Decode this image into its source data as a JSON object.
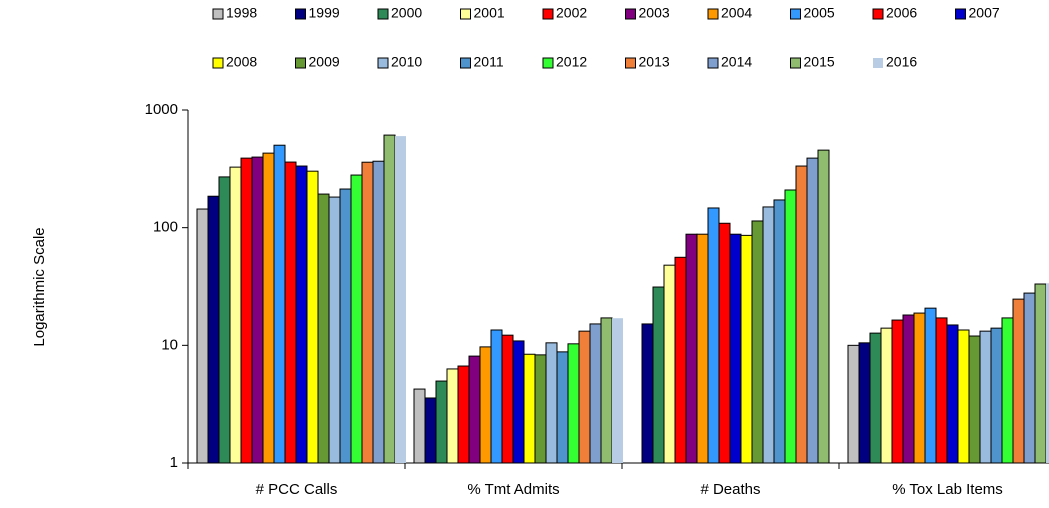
{
  "chart_data": {
    "type": "bar",
    "log_scale": true,
    "y_label": "Logarithmic Scale",
    "categories": [
      "# PCC Calls",
      "% Tmt Admits",
      "# Deaths",
      "% Tox Lab Items"
    ],
    "ylim": [
      1,
      1000
    ],
    "yticks": [
      1,
      10,
      100,
      1000
    ],
    "series": [
      {
        "name": "1998",
        "color": "#c0c0c0",
        "values": [
          144,
          4.25,
          null,
          10
        ]
      },
      {
        "name": "1999",
        "color": "#000080",
        "values": [
          185,
          3.57,
          15.2,
          10.5
        ]
      },
      {
        "name": "2000",
        "color": "#2e8b57",
        "values": [
          270,
          4.97,
          31.3,
          12.7
        ]
      },
      {
        "name": "2001",
        "color": "#ffff99",
        "values": [
          327,
          6.3,
          48,
          14
        ]
      },
      {
        "name": "2002",
        "color": "#ff0000",
        "values": [
          390,
          6.67,
          56,
          16.4
        ]
      },
      {
        "name": "2003",
        "color": "#800080",
        "values": [
          398,
          8.1,
          88,
          18.1
        ]
      },
      {
        "name": "2004",
        "color": "#ff9900",
        "values": [
          430,
          9.7,
          88,
          18.8
        ]
      },
      {
        "name": "2005",
        "color": "#3399ff",
        "values": [
          502,
          13.5,
          147,
          20.7
        ]
      },
      {
        "name": "2006",
        "color": "#ff0000",
        "values": [
          361,
          12.2,
          109,
          17.1
        ]
      },
      {
        "name": "2007",
        "color": "#0000cc",
        "values": [
          334,
          10.9,
          88,
          14.9
        ]
      },
      {
        "name": "2008",
        "color": "#ffff00",
        "values": [
          302,
          8.4,
          86,
          13.5
        ]
      },
      {
        "name": "2009",
        "color": "#669933",
        "values": [
          193,
          8.3,
          114,
          12
        ]
      },
      {
        "name": "2010",
        "color": "#99bbdd",
        "values": [
          182,
          10.5,
          150,
          13.2
        ]
      },
      {
        "name": "2011",
        "color": "#4f94cd",
        "values": [
          213,
          8.8,
          172,
          14
        ]
      },
      {
        "name": "2012",
        "color": "#33ff33",
        "values": [
          280,
          10.3,
          209,
          17.1
        ]
      },
      {
        "name": "2013",
        "color": "#f07f3a",
        "values": [
          360,
          13.2,
          334,
          24.7
        ]
      },
      {
        "name": "2014",
        "color": "#7f9fcf",
        "values": [
          367,
          15.2,
          390,
          27.8
        ]
      },
      {
        "name": "2015",
        "color": "#8fbc6f",
        "values": [
          612,
          17.1,
          456,
          33.2
        ]
      },
      {
        "name": "2016",
        "color": "#b8cce4",
        "values": [
          600,
          17,
          null,
          33.7
        ]
      }
    ]
  }
}
